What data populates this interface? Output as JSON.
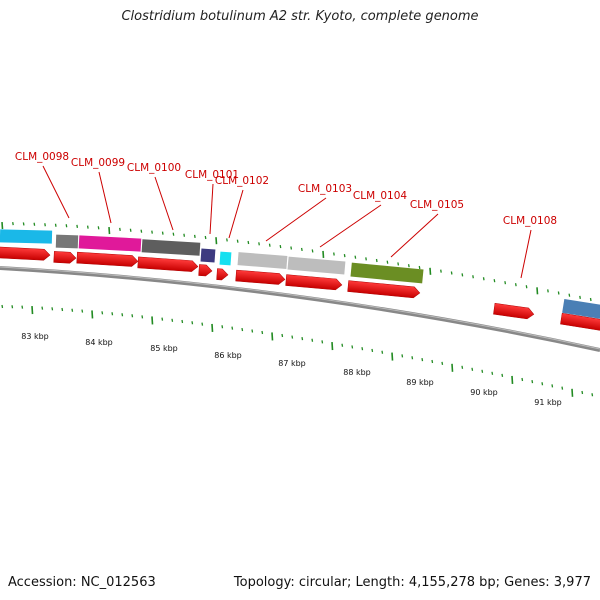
{
  "header": {
    "title": "Clostridium botulinum A2 str. Kyoto, complete genome"
  },
  "footer": {
    "accession": "Accession: NC_012563",
    "summary": "Topology: circular; Length: 4,155,278 bp; Genes: 3,977"
  },
  "scale_labels": [
    "83 kbp",
    "84 kbp",
    "85 kbp",
    "86 kbp",
    "87 kbp",
    "88 kbp",
    "89 kbp",
    "90 kbp",
    "91 kbp"
  ],
  "gene_labels": [
    "CLM_0098",
    "CLM_0099",
    "CLM_0100",
    "CLM_0101",
    "CLM_0102",
    "CLM_0103",
    "CLM_0104",
    "CLM_0105",
    "CLM_0108"
  ],
  "colors": {
    "gene_arrow": "#ee1111",
    "label": "#cc0000",
    "tick": "#228b22",
    "backbone": "#8a8a8a",
    "cyan_block": "#1ab8e8",
    "gray_block": "#777777",
    "magenta_block": "#e0199a",
    "dark_gray_block": "#5e5e5e",
    "navy_block": "#3d3a80",
    "aqua_block": "#16e0f0",
    "light_gray_block": "#bdbdbd",
    "olive_block": "#6b8e23",
    "steel_blue_block": "#4a7fb5"
  }
}
